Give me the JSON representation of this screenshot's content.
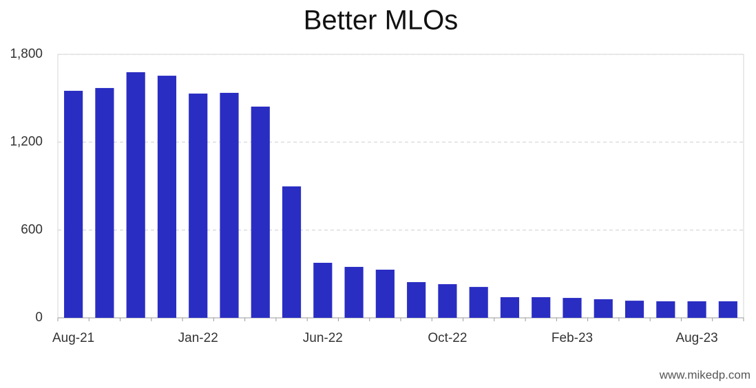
{
  "chart_data": {
    "type": "bar",
    "title": "Better MLOs",
    "categories": [
      "Aug-21",
      null,
      null,
      null,
      "Jan-22",
      null,
      null,
      null,
      "Jun-22",
      null,
      null,
      null,
      "Oct-22",
      null,
      null,
      null,
      "Feb-23",
      null,
      null,
      null,
      "Aug-23",
      null
    ],
    "values": [
      1551,
      1570,
      1678,
      1654,
      1532,
      1537,
      1443,
      898,
      376,
      348,
      329,
      244,
      230,
      211,
      141,
      141,
      136,
      127,
      117,
      113,
      113,
      113
    ],
    "color": "#2a2dc2",
    "ylim": [
      0,
      1800
    ],
    "yticks": [
      0,
      {
        "value": 600,
        "label": "600"
      },
      {
        "value": 1200,
        "label": "1,200"
      },
      {
        "value": 1800,
        "label": "1,800"
      }
    ],
    "grid": true,
    "source": "www.mikedp.com"
  }
}
